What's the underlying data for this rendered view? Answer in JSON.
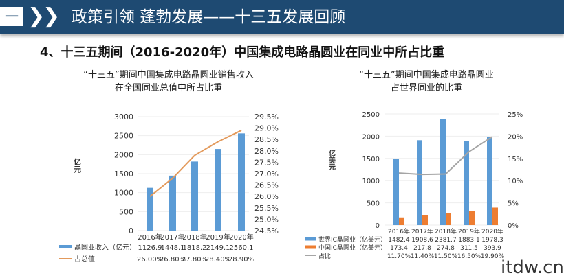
{
  "header": {
    "section_number": "一",
    "title": "政策引领 蓬勃发展——十三五发展回顾"
  },
  "subtitle": "4、十三五期间（2016-2020年）中国集成电路晶圆业在同业中所占比重",
  "watermark": "itdw.cn",
  "colors": {
    "header": "#1e4a72",
    "blue": "#5b9bd5",
    "orange": "#ed7d31",
    "line_orange": "#e39a5c",
    "gray": "#a5a5a5"
  },
  "chart_data": [
    {
      "type": "bar+line",
      "title": [
        "“十三五”期间中国集成电路晶圆业销售收入",
        "在全国同业总值中所占比重"
      ],
      "ylabel": "亿元",
      "categories": [
        "2016年",
        "2017年",
        "2018年",
        "2019年",
        "2020年"
      ],
      "ylim": [
        0,
        3000
      ],
      "yticks": [
        "0",
        "500",
        "1000",
        "1500",
        "2000",
        "2500",
        "3000"
      ],
      "y2lim": [
        24.5,
        29.5
      ],
      "y2ticks": [
        "24.5%",
        "25.0%",
        "25.5%",
        "26.0%",
        "26.5%",
        "27.0%",
        "27.5%",
        "28.0%",
        "28.5%",
        "29.0%",
        "29.5%"
      ],
      "series": [
        {
          "name": "晶圆业收入（亿元）",
          "type": "bar",
          "axis": "left",
          "values": [
            1126.9,
            1448.1,
            1818.2,
            2149.1,
            2560.1
          ],
          "labels": [
            "1126.9",
            "1448.1",
            "1818.2",
            "2149.1",
            "2560.1"
          ]
        },
        {
          "name": "占总值",
          "type": "line",
          "axis": "right",
          "values": [
            26.0,
            26.8,
            27.8,
            28.4,
            28.9
          ],
          "labels": [
            "26.00%",
            "26.80%",
            "27.80%",
            "28.40%",
            "28.90%"
          ]
        }
      ]
    },
    {
      "type": "bar+line",
      "title": [
        "“十三五”期间中国集成电路晶圆业",
        "占世界同业的比重"
      ],
      "ylabel": "亿美元",
      "categories": [
        "2016年",
        "2017年",
        "2018年",
        "2019年",
        "2020年"
      ],
      "ylim": [
        0,
        2500
      ],
      "yticks": [
        "0",
        "500",
        "1000",
        "1500",
        "2000",
        "2500"
      ],
      "y2lim": [
        0,
        25
      ],
      "y2ticks": [
        "0%",
        "5%",
        "10%",
        "15%",
        "20%",
        "25%"
      ],
      "series": [
        {
          "name": "世界IC晶圆业（亿美元）",
          "type": "bar",
          "axis": "left",
          "values": [
            1482.4,
            1908.6,
            2381.7,
            1883.1,
            1978.3
          ],
          "labels": [
            "1482.4",
            "1908.6",
            "2381.7",
            "1883.1",
            "1978.3"
          ]
        },
        {
          "name": "中国IC晶圆业（亿美元）",
          "type": "bar",
          "axis": "left",
          "values": [
            173.4,
            217.8,
            274.8,
            311.5,
            393.9
          ],
          "labels": [
            "173.4",
            "217.8",
            "274.8",
            "311.5",
            "393.9"
          ]
        },
        {
          "name": "占比",
          "type": "line",
          "axis": "right",
          "values": [
            11.7,
            11.4,
            11.5,
            16.5,
            19.9
          ],
          "labels": [
            "11.70%",
            "11.40%",
            "11.50%",
            "16.50%",
            "19.90%"
          ]
        }
      ]
    }
  ]
}
